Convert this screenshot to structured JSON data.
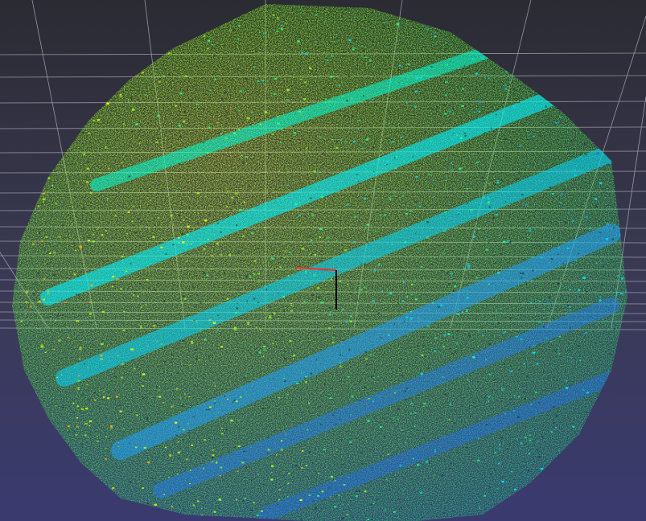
{
  "viewport": {
    "background_top": "#2b2b33",
    "background_mid": "#3a3a55",
    "background_bottom": "#3a3a70",
    "grid_color": "#b8b8c4",
    "point_colors": [
      "#1e5fff",
      "#1ea0ff",
      "#00e0ff",
      "#20ff90",
      "#9cff20",
      "#f0ff00",
      "#ffb000",
      "#ff5a00"
    ],
    "axes": {
      "x_axis_color": "#ff2a2a",
      "z_axis_color": "#000000"
    }
  }
}
